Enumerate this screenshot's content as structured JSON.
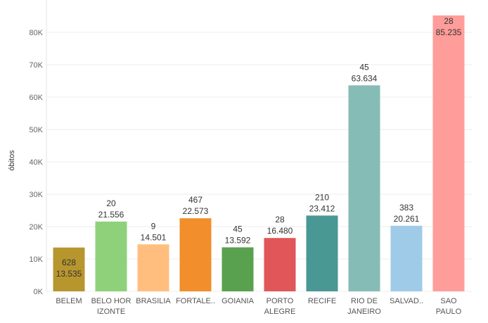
{
  "chart_data": {
    "type": "bar",
    "ylabel": "óbitos",
    "ylim": [
      0,
      90000
    ],
    "yticks": [
      0,
      10000,
      20000,
      30000,
      40000,
      50000,
      60000,
      70000,
      80000
    ],
    "ytick_labels": [
      "0K",
      "10K",
      "20K",
      "30K",
      "40K",
      "50K",
      "60K",
      "70K",
      "80K"
    ],
    "grid": true,
    "categories": [
      [
        "BELEM"
      ],
      [
        "BELO HOR",
        "IZONTE"
      ],
      [
        "BRASILIA"
      ],
      [
        "FORTALE.."
      ],
      [
        "GOIANIA"
      ],
      [
        "PORTO",
        "ALEGRE"
      ],
      [
        "RECIFE"
      ],
      [
        "RIO DE",
        "JANEIRO"
      ],
      [
        "SALVAD.."
      ],
      [
        "SAO",
        "PAULO"
      ]
    ],
    "values": [
      13535,
      21556,
      14501,
      22573,
      13592,
      16480,
      23412,
      63634,
      20261,
      85235
    ],
    "value_labels": [
      "13.535",
      "21.556",
      "14.501",
      "22.573",
      "13.592",
      "16.480",
      "23.412",
      "63.634",
      "20.261",
      "85.235"
    ],
    "secondary_labels": [
      "628",
      "20",
      "9",
      "467",
      "45",
      "28",
      "210",
      "45",
      "383",
      "28"
    ],
    "colors": [
      "#b8962e",
      "#8fd17a",
      "#ffbe7d",
      "#f28e2b",
      "#59a14f",
      "#e15759",
      "#499894",
      "#86bcb6",
      "#a0cbe8",
      "#ff9d9a"
    ],
    "labels_inside": [
      true,
      false,
      false,
      false,
      false,
      false,
      false,
      false,
      false,
      true
    ]
  }
}
